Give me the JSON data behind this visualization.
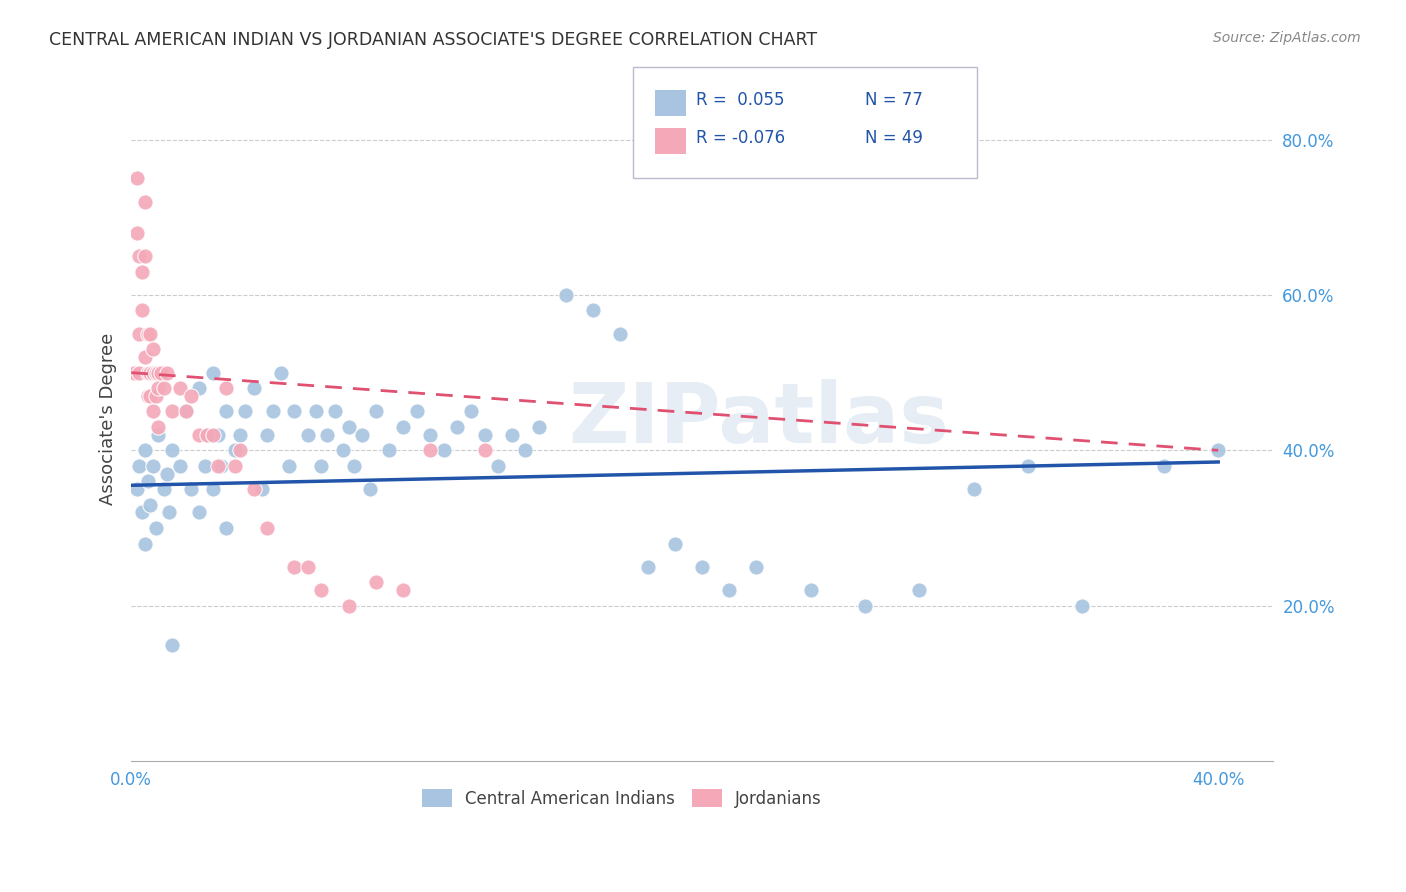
{
  "title": "CENTRAL AMERICAN INDIAN VS JORDANIAN ASSOCIATE'S DEGREE CORRELATION CHART",
  "source": "Source: ZipAtlas.com",
  "ylabel": "Associate's Degree",
  "xlim": [
    0.0,
    0.42
  ],
  "ylim": [
    0.0,
    0.88
  ],
  "ytick_vals": [
    0.2,
    0.4,
    0.6,
    0.8
  ],
  "ytick_labels": [
    "20.0%",
    "40.0%",
    "60.0%",
    "80.0%"
  ],
  "xtick_vals": [
    0.0,
    0.4
  ],
  "xtick_labels": [
    "0.0%",
    "40.0%"
  ],
  "legend_r_blue": "R =  0.055",
  "legend_n_blue": "N = 77",
  "legend_r_pink": "R = -0.076",
  "legend_n_pink": "N = 49",
  "blue_color": "#A8C4E0",
  "pink_color": "#F4A8B8",
  "blue_line_color": "#2255AA",
  "pink_line_color": "#E05070",
  "tick_color": "#4499DD",
  "watermark": "ZIPatlas",
  "blue_scatter_x": [
    0.002,
    0.003,
    0.004,
    0.005,
    0.005,
    0.006,
    0.007,
    0.008,
    0.009,
    0.01,
    0.012,
    0.013,
    0.014,
    0.015,
    0.015,
    0.018,
    0.02,
    0.022,
    0.025,
    0.025,
    0.027,
    0.028,
    0.03,
    0.03,
    0.032,
    0.033,
    0.035,
    0.035,
    0.038,
    0.04,
    0.042,
    0.045,
    0.048,
    0.05,
    0.052,
    0.055,
    0.058,
    0.06,
    0.065,
    0.068,
    0.07,
    0.072,
    0.075,
    0.078,
    0.08,
    0.082,
    0.085,
    0.088,
    0.09,
    0.095,
    0.1,
    0.105,
    0.11,
    0.115,
    0.12,
    0.125,
    0.13,
    0.135,
    0.14,
    0.145,
    0.15,
    0.16,
    0.17,
    0.18,
    0.19,
    0.2,
    0.21,
    0.22,
    0.23,
    0.25,
    0.27,
    0.29,
    0.31,
    0.33,
    0.35,
    0.38,
    0.4
  ],
  "blue_scatter_y": [
    0.35,
    0.38,
    0.32,
    0.4,
    0.28,
    0.36,
    0.33,
    0.38,
    0.3,
    0.42,
    0.35,
    0.37,
    0.32,
    0.4,
    0.15,
    0.38,
    0.45,
    0.35,
    0.48,
    0.32,
    0.38,
    0.42,
    0.5,
    0.35,
    0.42,
    0.38,
    0.45,
    0.3,
    0.4,
    0.42,
    0.45,
    0.48,
    0.35,
    0.42,
    0.45,
    0.5,
    0.38,
    0.45,
    0.42,
    0.45,
    0.38,
    0.42,
    0.45,
    0.4,
    0.43,
    0.38,
    0.42,
    0.35,
    0.45,
    0.4,
    0.43,
    0.45,
    0.42,
    0.4,
    0.43,
    0.45,
    0.42,
    0.38,
    0.42,
    0.4,
    0.43,
    0.6,
    0.58,
    0.55,
    0.25,
    0.28,
    0.25,
    0.22,
    0.25,
    0.22,
    0.2,
    0.22,
    0.35,
    0.38,
    0.2,
    0.38,
    0.4
  ],
  "pink_scatter_x": [
    0.001,
    0.002,
    0.002,
    0.003,
    0.003,
    0.003,
    0.004,
    0.004,
    0.005,
    0.005,
    0.005,
    0.006,
    0.006,
    0.006,
    0.007,
    0.007,
    0.007,
    0.008,
    0.008,
    0.008,
    0.009,
    0.009,
    0.01,
    0.01,
    0.01,
    0.011,
    0.012,
    0.013,
    0.015,
    0.018,
    0.02,
    0.022,
    0.025,
    0.028,
    0.03,
    0.032,
    0.035,
    0.038,
    0.04,
    0.045,
    0.05,
    0.06,
    0.065,
    0.07,
    0.08,
    0.09,
    0.1,
    0.11,
    0.13
  ],
  "pink_scatter_y": [
    0.5,
    0.75,
    0.68,
    0.65,
    0.55,
    0.5,
    0.63,
    0.58,
    0.72,
    0.65,
    0.52,
    0.55,
    0.5,
    0.47,
    0.55,
    0.5,
    0.47,
    0.53,
    0.5,
    0.45,
    0.5,
    0.47,
    0.5,
    0.48,
    0.43,
    0.5,
    0.48,
    0.5,
    0.45,
    0.48,
    0.45,
    0.47,
    0.42,
    0.42,
    0.42,
    0.38,
    0.48,
    0.38,
    0.4,
    0.35,
    0.3,
    0.25,
    0.25,
    0.22,
    0.2,
    0.23,
    0.22,
    0.4,
    0.4
  ]
}
